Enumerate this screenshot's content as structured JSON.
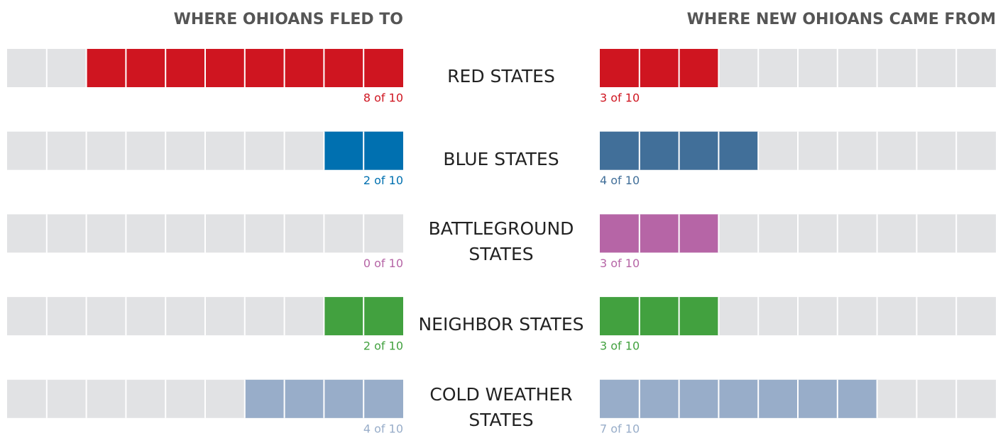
{
  "chart_data": {
    "type": "waffle-bar",
    "total": 10,
    "categories": [
      "RED STATES",
      "BLUE STATES",
      "BATTLEGROUND STATES",
      "NEIGHBOR STATES",
      "COLD WEATHER STATES"
    ],
    "series": [
      {
        "name": "WHERE OHIOANS FLED TO",
        "align": "right",
        "color": [
          "#cf1520",
          "#0070b0",
          "#b665a6",
          "#42a13f",
          "#98adc9"
        ],
        "values": [
          8,
          2,
          0,
          2,
          4
        ],
        "value_labels": [
          "8 of 10",
          "2 of 10",
          "0 of 10",
          "2 of 10",
          "4 of 10"
        ]
      },
      {
        "name": "WHERE NEW OHIOANS CAME FROM",
        "align": "left",
        "color": [
          "#cf1520",
          "#416f99",
          "#b665a6",
          "#42a13f",
          "#98adc9"
        ],
        "values": [
          3,
          4,
          3,
          3,
          7
        ],
        "value_labels": [
          "3 of 10",
          "4 of 10",
          "3 of 10",
          "3 of 10",
          "7 of 10"
        ]
      }
    ]
  }
}
